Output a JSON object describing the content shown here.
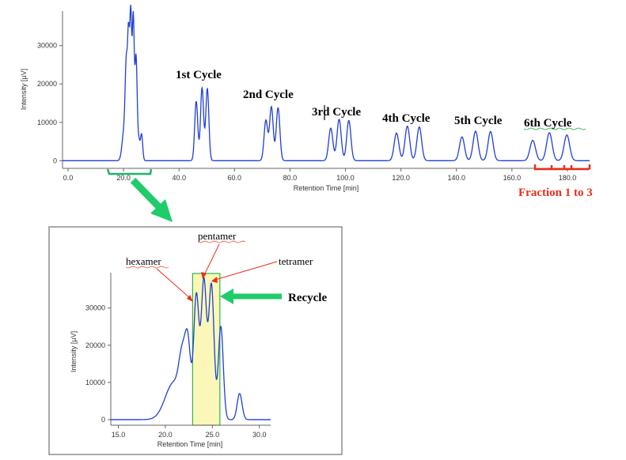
{
  "chart_data": [
    {
      "type": "line",
      "title": "",
      "xlabel": "Retention Time [min]",
      "ylabel": "Intensity [µV]",
      "xlim": [
        -2,
        188
      ],
      "ylim": [
        -2000,
        39000
      ],
      "xticks": [
        "0.0",
        "20.0",
        "40.0",
        "60.0",
        "80.0",
        "100.0",
        "120.0",
        "140.0",
        "160.0",
        "180.0"
      ],
      "xtick_values": [
        0,
        20,
        40,
        60,
        80,
        100,
        120,
        140,
        160,
        180
      ],
      "yticks": [
        "0",
        "10000",
        "20000",
        "30000"
      ],
      "ytick_values": [
        0,
        10000,
        20000,
        30000
      ],
      "line_color": "#1f3fd6",
      "peaks": [
        {
          "x": 20.2,
          "height": 8000,
          "width": 0.7
        },
        {
          "x": 21.0,
          "height": 21500,
          "width": 0.4
        },
        {
          "x": 21.8,
          "height": 30000,
          "width": 0.35
        },
        {
          "x": 22.6,
          "height": 37000,
          "width": 0.35
        },
        {
          "x": 23.5,
          "height": 36500,
          "width": 0.35
        },
        {
          "x": 24.5,
          "height": 27000,
          "width": 0.4
        },
        {
          "x": 25.5,
          "height": 5000,
          "width": 0.4
        },
        {
          "x": 26.5,
          "height": 6800,
          "width": 0.4
        },
        {
          "x": 46.2,
          "height": 15500,
          "width": 0.55
        },
        {
          "x": 48.3,
          "height": 19000,
          "width": 0.55
        },
        {
          "x": 50.2,
          "height": 18800,
          "width": 0.55
        },
        {
          "x": 71.3,
          "height": 10500,
          "width": 0.65
        },
        {
          "x": 73.3,
          "height": 14000,
          "width": 0.65
        },
        {
          "x": 75.7,
          "height": 13800,
          "width": 0.65
        },
        {
          "x": 94.7,
          "height": 8500,
          "width": 0.75
        },
        {
          "x": 97.7,
          "height": 10800,
          "width": 0.75
        },
        {
          "x": 101.2,
          "height": 10500,
          "width": 0.75
        },
        {
          "x": 118.4,
          "height": 7200,
          "width": 0.85
        },
        {
          "x": 122.3,
          "height": 9000,
          "width": 0.85
        },
        {
          "x": 126.6,
          "height": 8800,
          "width": 0.85
        },
        {
          "x": 142.0,
          "height": 6200,
          "width": 0.9
        },
        {
          "x": 146.9,
          "height": 7700,
          "width": 0.9
        },
        {
          "x": 152.3,
          "height": 7600,
          "width": 0.9
        },
        {
          "x": 167.5,
          "height": 5300,
          "width": 1.0
        },
        {
          "x": 173.5,
          "height": 7300,
          "width": 1.0
        },
        {
          "x": 179.8,
          "height": 6700,
          "width": 1.0
        }
      ],
      "annotations": [
        "1st Cycle",
        "2nd Cycle",
        "3rd Cycle",
        "4th Cycle",
        "5th Cycle",
        "6th Cycle",
        "Fraction 1 to 3"
      ],
      "fraction_bracket_color": "#e8301c",
      "zoom_bracket_color": "#1fb36b",
      "arrow_color": "#1fcc6a"
    },
    {
      "type": "line",
      "title": "",
      "xlabel": "Retention Time [min]",
      "ylabel": "Intensity [µV]",
      "xlim": [
        14.2,
        31.2
      ],
      "ylim": [
        -1500,
        39500
      ],
      "xticks": [
        "15.0",
        "20.0",
        "25.0",
        "30.0"
      ],
      "xtick_values": [
        15,
        20,
        25,
        30
      ],
      "yticks": [
        "0",
        "10000",
        "20000",
        "30000"
      ],
      "ytick_values": [
        0,
        10000,
        20000,
        30000
      ],
      "line_color": "#1f3fd6",
      "highlight_range": [
        22.9,
        25.8
      ],
      "highlight_fill": "#fbf7b8",
      "highlight_border": "#2fb24f",
      "peaks": [
        {
          "x": 20.9,
          "height": 10000,
          "width": 0.9
        },
        {
          "x": 21.8,
          "height": 12000,
          "width": 0.35
        },
        {
          "x": 22.4,
          "height": 18000,
          "width": 0.3
        },
        {
          "x": 23.3,
          "height": 33000,
          "width": 0.28
        },
        {
          "x": 24.1,
          "height": 37000,
          "width": 0.28
        },
        {
          "x": 24.9,
          "height": 36000,
          "width": 0.28
        },
        {
          "x": 25.9,
          "height": 25000,
          "width": 0.26
        },
        {
          "x": 27.9,
          "height": 7000,
          "width": 0.26
        }
      ],
      "annotations": [
        "hexamer",
        "pentamer",
        "tetramer",
        "Recycle"
      ]
    }
  ],
  "labels": {
    "cycle1": "1st Cycle",
    "cycle2": "2nd Cycle",
    "cycle3": "3rd Cycle",
    "cycle4": "4th Cycle",
    "cycle5": "5th Cycle",
    "cycle6": "6th Cycle",
    "fraction": "Fraction 1 to 3",
    "hexamer": "hexamer",
    "pentamer": "pentamer",
    "tetramer": "tetramer",
    "recycle": "Recycle"
  }
}
